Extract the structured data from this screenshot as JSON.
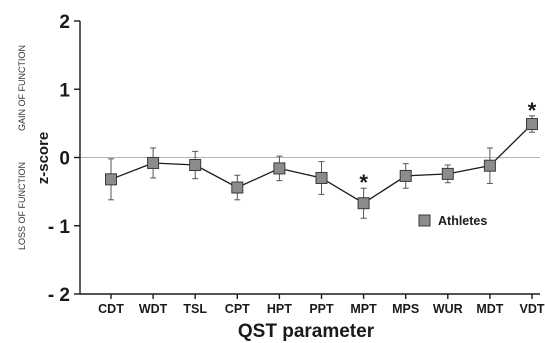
{
  "chart_data": {
    "type": "line",
    "categories": [
      "CDT",
      "WDT",
      "TSL",
      "CPT",
      "HPT",
      "PPT",
      "MPT",
      "MPS",
      "WUR",
      "MDT",
      "VDT"
    ],
    "series": [
      {
        "name": "Athletes",
        "values": [
          -0.32,
          -0.08,
          -0.11,
          -0.44,
          -0.16,
          -0.3,
          -0.67,
          -0.27,
          -0.24,
          -0.12,
          0.49
        ],
        "error": [
          0.3,
          0.22,
          0.2,
          0.18,
          0.18,
          0.24,
          0.22,
          0.18,
          0.13,
          0.26,
          0.12
        ],
        "significant": [
          false,
          false,
          false,
          false,
          false,
          false,
          true,
          false,
          false,
          false,
          true
        ]
      }
    ],
    "xlabel": "QST parameter",
    "ylabel": "z-score",
    "ylim": [
      -2,
      2
    ],
    "yticks": [
      {
        "value": 2,
        "label": "2"
      },
      {
        "value": 1,
        "label": "1"
      },
      {
        "value": 0,
        "label": "0"
      },
      {
        "value": -1,
        "label": "- 1"
      },
      {
        "value": -2,
        "label": "- 2"
      }
    ],
    "side_labels": {
      "top": "GAIN OF FUNCTION",
      "bottom": "LOSS OF FUNCTION"
    },
    "significance_marker": "*",
    "reference_line": 0,
    "legend_position": "right, below zero line",
    "colors": {
      "marker_fill": "#8c8c8c",
      "marker_stroke": "#3a3a3a",
      "line": "#1a1a1a",
      "zero_line": "#b5b5b5",
      "axis": "#1a1a1a"
    }
  }
}
